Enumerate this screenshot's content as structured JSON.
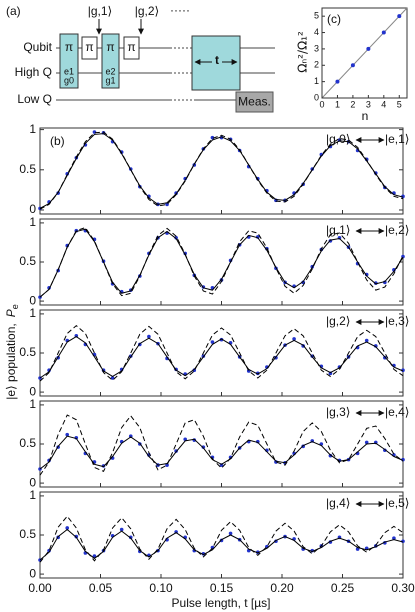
{
  "diagram": {
    "label": "(a)",
    "lines": [
      "Qubit",
      "High Q",
      "Low Q"
    ],
    "pulse": "π",
    "sidebands": [
      [
        "e1",
        "g0"
      ],
      [
        "e2",
        "g1"
      ]
    ],
    "markers": [
      "|g,1⟩",
      "|g,2⟩"
    ],
    "ellipsis": "·····",
    "wait": "t",
    "measure": "Meas."
  },
  "chart_data": [
    {
      "type": "scatter",
      "label": "(c)",
      "xlabel": "n",
      "ylabel": "Ωₙ²/Ω₁²",
      "x": [
        1,
        2,
        3,
        4,
        5
      ],
      "values": [
        1,
        2,
        3,
        4,
        5
      ],
      "color": "#2233cc",
      "xlim": [
        0,
        5.5
      ],
      "ylim": [
        0,
        5.5
      ],
      "xticks": [
        0,
        1,
        2,
        3,
        4,
        5
      ],
      "yticks": [
        0,
        1,
        2,
        3,
        4,
        5
      ]
    },
    {
      "type": "line",
      "label": "(b)",
      "xlabel": "Pulse length, t [µs]",
      "ylabel": "|e⟩ population,",
      "ylabel_symbol": "P",
      "ylabel_subscript": "e",
      "xlim": [
        0,
        0.3
      ],
      "xticks": [
        {
          "value": 0,
          "label": "0.00"
        },
        {
          "value": 0.05,
          "label": "0.05"
        },
        {
          "value": 0.1,
          "label": "0.10"
        },
        {
          "value": 0.15,
          "label": "0.15"
        },
        {
          "value": 0.2,
          "label": "0.20"
        },
        {
          "value": 0.25,
          "label": "0.25"
        },
        {
          "value": 0.3,
          "label": "0.30"
        }
      ],
      "x": [
        0,
        0.0075,
        0.015,
        0.0225,
        0.03,
        0.0375,
        0.045,
        0.0525,
        0.06,
        0.0675,
        0.075,
        0.0825,
        0.09,
        0.0975,
        0.105,
        0.1125,
        0.12,
        0.1275,
        0.135,
        0.1425,
        0.15,
        0.1575,
        0.165,
        0.1725,
        0.18,
        0.1875,
        0.195,
        0.2025,
        0.21,
        0.2175,
        0.225,
        0.2325,
        0.24,
        0.2475,
        0.255,
        0.2625,
        0.27,
        0.2775,
        0.285,
        0.2925,
        0.3
      ],
      "panels": [
        {
          "states": [
            "|g,0⟩",
            "|e,1⟩"
          ],
          "ylim": [
            -0.05,
            1.02
          ],
          "yticks": [
            0,
            0.5,
            1
          ],
          "series": [
            {
              "style": "dots",
              "color": "#2233cc",
              "values": [
                0.02,
                0.1,
                0.21,
                0.45,
                0.65,
                0.81,
                0.97,
                0.96,
                0.85,
                0.72,
                0.51,
                0.29,
                0.17,
                0.07,
                0.07,
                0.21,
                0.39,
                0.56,
                0.76,
                0.9,
                0.9,
                0.88,
                0.74,
                0.54,
                0.39,
                0.24,
                0.12,
                0.12,
                0.21,
                0.32,
                0.51,
                0.69,
                0.79,
                0.87,
                0.85,
                0.74,
                0.63,
                0.46,
                0.28,
                0.21,
                0.17
              ]
            },
            {
              "style": "solid",
              "color": "#000000",
              "values": [
                0.02,
                0.08,
                0.22,
                0.43,
                0.64,
                0.83,
                0.94,
                0.95,
                0.87,
                0.7,
                0.5,
                0.3,
                0.15,
                0.07,
                0.09,
                0.2,
                0.37,
                0.57,
                0.75,
                0.87,
                0.91,
                0.86,
                0.74,
                0.56,
                0.38,
                0.22,
                0.13,
                0.12,
                0.19,
                0.33,
                0.5,
                0.67,
                0.8,
                0.86,
                0.85,
                0.76,
                0.61,
                0.45,
                0.29,
                0.19,
                0.16
              ]
            },
            {
              "style": "dashed",
              "color": "#000000",
              "values": [
                0.01,
                0.07,
                0.22,
                0.44,
                0.66,
                0.85,
                0.96,
                0.97,
                0.88,
                0.71,
                0.5,
                0.29,
                0.13,
                0.05,
                0.07,
                0.19,
                0.36,
                0.57,
                0.76,
                0.89,
                0.93,
                0.88,
                0.75,
                0.56,
                0.37,
                0.21,
                0.11,
                0.1,
                0.17,
                0.32,
                0.5,
                0.68,
                0.82,
                0.89,
                0.87,
                0.78,
                0.62,
                0.44,
                0.28,
                0.17,
                0.14
              ]
            }
          ]
        },
        {
          "states": [
            "|g,1⟩",
            "|e,2⟩"
          ],
          "ylim": [
            -0.05,
            1.05
          ],
          "yticks": [
            0,
            0.5,
            1
          ],
          "series": [
            {
              "style": "dots",
              "color": "#2233cc",
              "values": [
                0.05,
                0.17,
                0.39,
                0.71,
                0.9,
                0.9,
                0.79,
                0.51,
                0.22,
                0.12,
                0.14,
                0.32,
                0.61,
                0.81,
                0.87,
                0.81,
                0.61,
                0.33,
                0.18,
                0.17,
                0.27,
                0.52,
                0.72,
                0.82,
                0.82,
                0.67,
                0.42,
                0.24,
                0.19,
                0.24,
                0.44,
                0.66,
                0.77,
                0.81,
                0.69,
                0.48,
                0.34,
                0.23,
                0.24,
                0.4,
                0.57
              ]
            },
            {
              "style": "solid",
              "color": "#000000",
              "values": [
                0.05,
                0.15,
                0.4,
                0.69,
                0.89,
                0.92,
                0.76,
                0.5,
                0.24,
                0.1,
                0.13,
                0.33,
                0.59,
                0.81,
                0.89,
                0.8,
                0.59,
                0.34,
                0.17,
                0.14,
                0.28,
                0.5,
                0.72,
                0.84,
                0.81,
                0.65,
                0.43,
                0.24,
                0.17,
                0.25,
                0.43,
                0.64,
                0.78,
                0.8,
                0.69,
                0.5,
                0.32,
                0.22,
                0.25,
                0.38,
                0.56
              ]
            },
            {
              "style": "dashed",
              "color": "#000000",
              "values": [
                0.05,
                0.15,
                0.4,
                0.69,
                0.9,
                0.94,
                0.77,
                0.5,
                0.22,
                0.07,
                0.1,
                0.32,
                0.6,
                0.84,
                0.93,
                0.83,
                0.6,
                0.32,
                0.13,
                0.09,
                0.25,
                0.5,
                0.76,
                0.9,
                0.87,
                0.68,
                0.42,
                0.19,
                0.1,
                0.2,
                0.41,
                0.67,
                0.85,
                0.87,
                0.74,
                0.5,
                0.27,
                0.14,
                0.18,
                0.35,
                0.58
              ]
            }
          ]
        },
        {
          "states": [
            "|g,2⟩",
            "|e,3⟩"
          ],
          "ylim": [
            -0.05,
            1.05
          ],
          "yticks": [
            0,
            0.5,
            1
          ],
          "series": [
            {
              "style": "dots",
              "color": "#2233cc",
              "values": [
                0.18,
                0.28,
                0.44,
                0.66,
                0.72,
                0.61,
                0.48,
                0.28,
                0.18,
                0.29,
                0.46,
                0.61,
                0.71,
                0.62,
                0.43,
                0.29,
                0.23,
                0.28,
                0.46,
                0.64,
                0.67,
                0.63,
                0.45,
                0.27,
                0.24,
                0.32,
                0.44,
                0.6,
                0.68,
                0.59,
                0.46,
                0.33,
                0.24,
                0.32,
                0.45,
                0.57,
                0.66,
                0.59,
                0.44,
                0.34,
                0.28
              ]
            },
            {
              "style": "solid",
              "color": "#000000",
              "values": [
                0.18,
                0.26,
                0.45,
                0.64,
                0.71,
                0.63,
                0.45,
                0.27,
                0.2,
                0.27,
                0.45,
                0.62,
                0.69,
                0.62,
                0.45,
                0.28,
                0.21,
                0.29,
                0.45,
                0.61,
                0.68,
                0.61,
                0.45,
                0.29,
                0.23,
                0.3,
                0.45,
                0.6,
                0.66,
                0.6,
                0.45,
                0.31,
                0.25,
                0.31,
                0.45,
                0.59,
                0.64,
                0.58,
                0.45,
                0.32,
                0.27
              ]
            },
            {
              "style": "dashed",
              "color": "#000000",
              "values": [
                0.14,
                0.25,
                0.5,
                0.75,
                0.85,
                0.75,
                0.5,
                0.25,
                0.15,
                0.26,
                0.5,
                0.74,
                0.84,
                0.74,
                0.5,
                0.26,
                0.17,
                0.27,
                0.5,
                0.73,
                0.82,
                0.73,
                0.5,
                0.27,
                0.18,
                0.28,
                0.5,
                0.72,
                0.81,
                0.72,
                0.5,
                0.28,
                0.2,
                0.29,
                0.5,
                0.71,
                0.79,
                0.71,
                0.5,
                0.29,
                0.21
              ]
            }
          ]
        },
        {
          "states": [
            "|g,3⟩",
            "|e,4⟩"
          ],
          "ylim": [
            -0.05,
            1.05
          ],
          "yticks": [
            0,
            0.5,
            1
          ],
          "series": [
            {
              "style": "dots",
              "color": "#2233cc",
              "values": [
                0.18,
                0.29,
                0.46,
                0.62,
                0.58,
                0.38,
                0.27,
                0.22,
                0.32,
                0.53,
                0.6,
                0.5,
                0.36,
                0.23,
                0.23,
                0.41,
                0.56,
                0.55,
                0.46,
                0.33,
                0.23,
                0.33,
                0.45,
                0.53,
                0.53,
                0.42,
                0.27,
                0.26,
                0.38,
                0.47,
                0.54,
                0.5,
                0.35,
                0.29,
                0.3,
                0.38,
                0.52,
                0.52,
                0.42,
                0.36,
                0.3
              ]
            },
            {
              "style": "solid",
              "color": "#000000",
              "values": [
                0.18,
                0.27,
                0.47,
                0.6,
                0.57,
                0.4,
                0.24,
                0.21,
                0.34,
                0.51,
                0.59,
                0.51,
                0.34,
                0.23,
                0.25,
                0.4,
                0.54,
                0.56,
                0.45,
                0.3,
                0.24,
                0.31,
                0.45,
                0.55,
                0.52,
                0.4,
                0.28,
                0.26,
                0.36,
                0.48,
                0.53,
                0.48,
                0.36,
                0.28,
                0.3,
                0.4,
                0.5,
                0.51,
                0.43,
                0.34,
                0.29
              ]
            },
            {
              "style": "dashed",
              "color": "#000000",
              "values": [
                0.1,
                0.27,
                0.62,
                0.87,
                0.81,
                0.5,
                0.2,
                0.15,
                0.39,
                0.71,
                0.86,
                0.71,
                0.39,
                0.17,
                0.23,
                0.5,
                0.77,
                0.81,
                0.6,
                0.31,
                0.19,
                0.32,
                0.59,
                0.78,
                0.74,
                0.5,
                0.27,
                0.23,
                0.41,
                0.66,
                0.77,
                0.66,
                0.42,
                0.26,
                0.3,
                0.5,
                0.7,
                0.73,
                0.57,
                0.37,
                0.28
              ]
            }
          ]
        },
        {
          "states": [
            "|g,4⟩",
            "|e,5⟩"
          ],
          "ylim": [
            -0.05,
            1.05
          ],
          "yticks": [
            0,
            0.5,
            1
          ],
          "series": [
            {
              "style": "dots",
              "color": "#2233cc",
              "values": [
                0.18,
                0.3,
                0.47,
                0.59,
                0.48,
                0.27,
                0.23,
                0.3,
                0.49,
                0.57,
                0.47,
                0.29,
                0.24,
                0.3,
                0.44,
                0.54,
                0.47,
                0.3,
                0.26,
                0.34,
                0.43,
                0.52,
                0.44,
                0.3,
                0.28,
                0.35,
                0.42,
                0.48,
                0.45,
                0.32,
                0.3,
                0.36,
                0.41,
                0.47,
                0.42,
                0.32,
                0.33,
                0.36,
                0.4,
                0.46,
                0.42
              ]
            },
            {
              "style": "solid",
              "color": "#000000",
              "values": [
                0.18,
                0.28,
                0.48,
                0.57,
                0.47,
                0.29,
                0.2,
                0.29,
                0.47,
                0.55,
                0.46,
                0.3,
                0.22,
                0.3,
                0.46,
                0.53,
                0.45,
                0.31,
                0.25,
                0.31,
                0.44,
                0.5,
                0.44,
                0.32,
                0.27,
                0.33,
                0.43,
                0.48,
                0.43,
                0.33,
                0.29,
                0.34,
                0.42,
                0.46,
                0.42,
                0.34,
                0.31,
                0.35,
                0.41,
                0.44,
                0.41
              ]
            },
            {
              "style": "dashed",
              "color": "#000000",
              "values": [
                0.15,
                0.3,
                0.6,
                0.74,
                0.59,
                0.31,
                0.17,
                0.31,
                0.59,
                0.72,
                0.58,
                0.32,
                0.19,
                0.32,
                0.58,
                0.7,
                0.57,
                0.33,
                0.22,
                0.33,
                0.56,
                0.67,
                0.56,
                0.34,
                0.24,
                0.35,
                0.55,
                0.65,
                0.55,
                0.35,
                0.26,
                0.36,
                0.54,
                0.63,
                0.54,
                0.36,
                0.28,
                0.37,
                0.53,
                0.61,
                0.53
              ]
            }
          ]
        }
      ]
    }
  ]
}
